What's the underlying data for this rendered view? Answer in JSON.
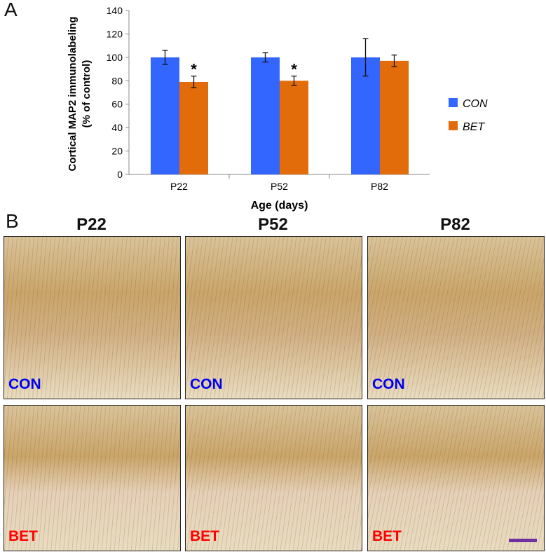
{
  "panels": {
    "a_label": "A",
    "b_label": "B"
  },
  "chart_data": {
    "type": "bar",
    "categories": [
      "P22",
      "P52",
      "P82"
    ],
    "series": [
      {
        "name": "CON",
        "values": [
          100,
          100,
          100
        ],
        "errors": [
          6,
          4,
          16
        ],
        "color": "#3366ff"
      },
      {
        "name": "BET",
        "values": [
          79,
          80,
          97
        ],
        "errors": [
          5,
          4,
          5
        ],
        "color": "#e36c0a"
      }
    ],
    "significance": [
      "*",
      "*",
      ""
    ],
    "xlabel": "Age (days)",
    "ylabel_line1": "Cortical MAP2 immunolabeling",
    "ylabel_line2": "(% of control)",
    "ylim": [
      0,
      140
    ],
    "yticks": [
      0,
      20,
      40,
      60,
      80,
      100,
      120,
      140
    ],
    "grid": false,
    "legend_position": "right"
  },
  "micrographs": {
    "columns": [
      "P22",
      "P52",
      "P82"
    ],
    "rows": [
      {
        "label": "CON",
        "color": "#0000ee"
      },
      {
        "label": "BET",
        "color": "#ff0000"
      }
    ]
  }
}
